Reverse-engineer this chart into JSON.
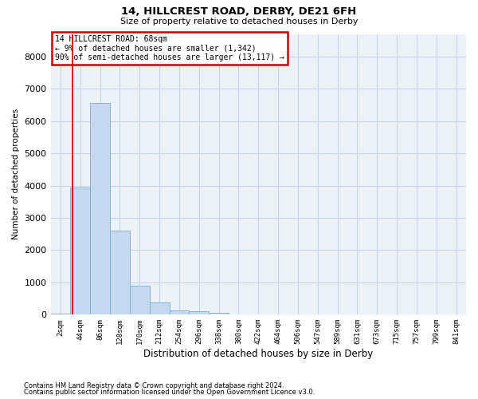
{
  "title_line1": "14, HILLCREST ROAD, DERBY, DE21 6FH",
  "title_line2": "Size of property relative to detached houses in Derby",
  "xlabel": "Distribution of detached houses by size in Derby",
  "ylabel": "Number of detached properties",
  "annotation_line1": "14 HILLCREST ROAD: 68sqm",
  "annotation_line2": "← 9% of detached houses are smaller (1,342)",
  "annotation_line3": "90% of semi-detached houses are larger (13,117) →",
  "footer_line1": "Contains HM Land Registry data © Crown copyright and database right 2024.",
  "footer_line2": "Contains public sector information licensed under the Open Government Licence v3.0.",
  "bar_color": "#c5d8ef",
  "bar_edge_color": "#7aaed0",
  "vline_color": "#cc0000",
  "annotation_box_color": "#cc0000",
  "grid_color": "#c8d4e8",
  "bg_color": "#edf2f9",
  "categories": [
    "2sqm",
    "44sqm",
    "86sqm",
    "128sqm",
    "170sqm",
    "212sqm",
    "254sqm",
    "296sqm",
    "338sqm",
    "380sqm",
    "422sqm",
    "464sqm",
    "506sqm",
    "547sqm",
    "589sqm",
    "631sqm",
    "673sqm",
    "715sqm",
    "757sqm",
    "799sqm",
    "841sqm"
  ],
  "values": [
    40,
    3950,
    6550,
    2600,
    900,
    370,
    130,
    100,
    60,
    0,
    0,
    0,
    0,
    0,
    0,
    0,
    0,
    0,
    0,
    0,
    0
  ],
  "vline_x": 0.62,
  "ylim": [
    0,
    8700
  ],
  "yticks": [
    0,
    1000,
    2000,
    3000,
    4000,
    5000,
    6000,
    7000,
    8000
  ]
}
